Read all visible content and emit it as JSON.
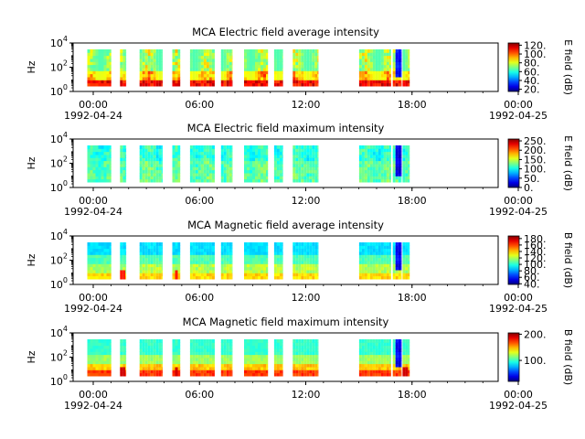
{
  "chart_data": [
    {
      "type": "heatmap",
      "title": "MCA  Electric field average intensity",
      "ylabel": "Hz",
      "y_scale": "log",
      "ylim_exponent": [
        0,
        4
      ],
      "yticks": [
        {
          "base": "10",
          "exp": "0"
        },
        {
          "base": "10",
          "exp": "2"
        },
        {
          "base": "10",
          "exp": "4"
        }
      ],
      "xticks": [
        "00:00",
        "06:00",
        "12:00",
        "18:00",
        "00:00"
      ],
      "x_start_date": "1992-04-24",
      "x_end_date": "1992-04-25",
      "colorbar_label": "E field (dB)",
      "colorbar_ticks": [
        "20.",
        "40.",
        "60.",
        "80.",
        "100.",
        "120."
      ],
      "colorbar_range": [
        15,
        125
      ],
      "mode": "electric-average"
    },
    {
      "type": "heatmap",
      "title": "MCA  Electric field maximum intensity",
      "ylabel": "Hz",
      "y_scale": "log",
      "ylim_exponent": [
        0,
        4
      ],
      "yticks": [
        {
          "base": "10",
          "exp": "0"
        },
        {
          "base": "10",
          "exp": "2"
        },
        {
          "base": "10",
          "exp": "4"
        }
      ],
      "xticks": [
        "00:00",
        "06:00",
        "12:00",
        "18:00",
        "00:00"
      ],
      "x_start_date": "1992-04-24",
      "x_end_date": "1992-04-25",
      "colorbar_label": "E field (dB)",
      "colorbar_ticks": [
        "0.",
        "50.",
        "100.",
        "150.",
        "200.",
        "250."
      ],
      "colorbar_range": [
        0,
        260
      ],
      "mode": "electric-maximum"
    },
    {
      "type": "heatmap",
      "title": "MCA  Magnetic field average intensity",
      "ylabel": "Hz",
      "y_scale": "log",
      "ylim_exponent": [
        0,
        4
      ],
      "yticks": [
        {
          "base": "10",
          "exp": "0"
        },
        {
          "base": "10",
          "exp": "2"
        },
        {
          "base": "10",
          "exp": "4"
        }
      ],
      "xticks": [
        "00:00",
        "06:00",
        "12:00",
        "18:00",
        "00:00"
      ],
      "x_start_date": "1992-04-24",
      "x_end_date": "1992-04-25",
      "colorbar_label": "B field (dB)",
      "colorbar_ticks": [
        "40.",
        "60.",
        "80.",
        "100.",
        "120.",
        "140.",
        "160.",
        "180."
      ],
      "colorbar_range": [
        38,
        188
      ],
      "mode": "magnetic-average"
    },
    {
      "type": "heatmap",
      "title": "MCA  Magnetic field maximum intensity",
      "ylabel": "Hz",
      "y_scale": "log",
      "ylim_exponent": [
        0,
        4
      ],
      "yticks": [
        {
          "base": "10",
          "exp": "0"
        },
        {
          "base": "10",
          "exp": "2"
        },
        {
          "base": "10",
          "exp": "4"
        }
      ],
      "xticks": [
        "00:00",
        "06:00",
        "12:00",
        "18:00",
        "00:00"
      ],
      "x_start_date": "1992-04-24",
      "x_end_date": "1992-04-25",
      "colorbar_label": "B field (dB)",
      "colorbar_ticks": [
        "100.",
        "200."
      ],
      "colorbar_range": [
        20,
        205
      ],
      "mode": "magnetic-maximum"
    }
  ],
  "data_intervals_hours": [
    [
      0.8,
      2.15
    ],
    [
      2.65,
      3.0
    ],
    [
      3.75,
      5.05
    ],
    [
      5.6,
      6.05
    ],
    [
      6.6,
      8.0
    ],
    [
      8.35,
      9.0
    ],
    [
      9.65,
      11.0
    ],
    [
      11.35,
      11.85
    ],
    [
      12.4,
      13.85
    ],
    [
      16.15,
      17.95
    ],
    [
      18.05,
      18.55
    ],
    [
      18.6,
      19.0
    ]
  ]
}
